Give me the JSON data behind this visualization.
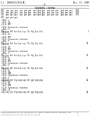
{
  "background_color": "#ffffff",
  "page_header_left": "U.S. 2009/0111154 A1",
  "page_header_right": "Dec. 15, 2009",
  "page_number": "47",
  "title": "SEQUENCE LISTING",
  "top_seq_lines": [
    "201  tga tga tga  gat gat gat  gat gat gat  gat gat gat  gat gat gat   250",
    "251  gat gat gat  gat gat gat  gat gat gat  gat gat gat  gat gat gat   300",
    "301  gat gat gat  gat gat gat  gat gat gat  gat gat gat  gat gat gat   330",
    "331  gat gat gat"
  ],
  "sections": [
    {
      "meta": [
        "<210> 1",
        "<211> 30",
        "<212> PRT",
        "<213> Pyrococcus furiosus"
      ],
      "seq_label": "<400> 1",
      "seq_data": "Met Lys Val Leu Lys Lys Ile Gly Lys Glu",
      "right_num": "1"
    },
    {
      "meta": [
        "<210> 2",
        "<211> 30",
        "<212> PRT",
        "<213> Pyrococcus furiosus"
      ],
      "seq_label": "<400> 2",
      "seq_data": "Met Lys Val Leu Lys Lys Ile Gly Lys Glu",
      "right_num": "21"
    },
    {
      "meta": [
        "<210> 3",
        "<211> 30",
        "<212> PRT",
        "<213> Pyrococcus furiosus"
      ],
      "seq_label": "<400> 3",
      "seq_data": "Met Lys Val Leu Lys Lys Ile Gly Lys Glu",
      "right_num": "41"
    },
    {
      "meta": [
        "<210> 4",
        "<211> 30",
        "<212> PRT",
        "<213> Pyrococcus furiosus"
      ],
      "seq_label": "<400> 4",
      "seq_data": "Met Lys Val Leu Lys Lys Ile Gly Lys Glu",
      "right_num": "61"
    },
    {
      "meta": [
        "<210> 5",
        "<211> 30",
        "<212> DNA",
        "<213> Pyrococcus furiosus"
      ],
      "seq_label": "<400> 5",
      "seq_data": "atg aag gtt ttg aag aag att ggt aag gag",
      "right_num": "81"
    },
    {
      "meta": [
        "<210> 11",
        "<211> 46",
        "<212> DNA",
        "<213> Pyrococcus furiosus"
      ],
      "seq_label": "<400> 11",
      "seq_data": "atg aag gtt ttg aag aag att ggt aag gag",
      "right_num": "14",
      "is_last": true
    }
  ],
  "footer_lines": [
    "thermostabilization of DNA polymerase by protein folding pathway chaperonin from      14",
    "hyperthermophile archaeon Pyrococcus furiosus                                          77"
  ]
}
